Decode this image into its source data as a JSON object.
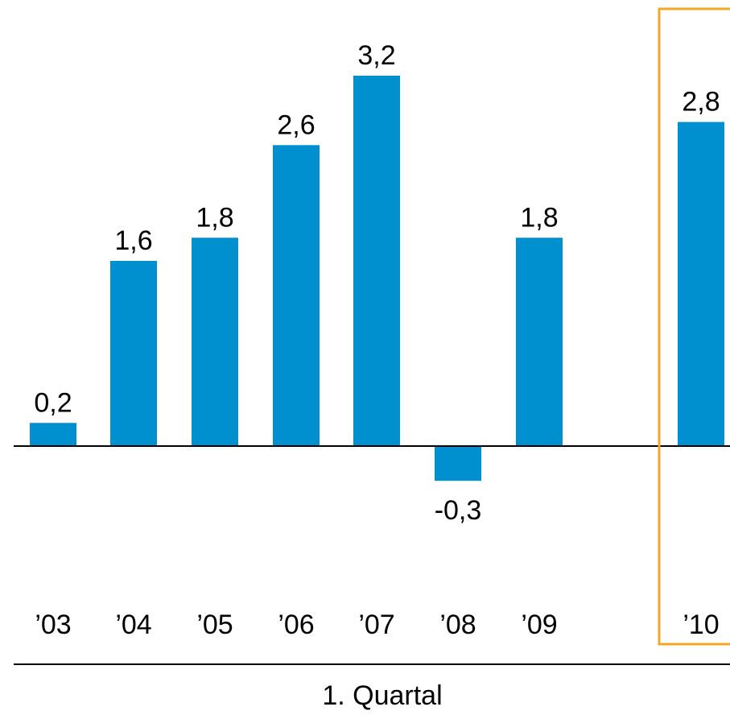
{
  "chart_data": {
    "type": "bar",
    "categories": [
      "’03",
      "’04",
      "’05",
      "’06",
      "’07",
      "’08",
      "’09",
      "’10"
    ],
    "values": [
      0.2,
      1.6,
      1.8,
      2.6,
      3.2,
      -0.3,
      1.8,
      2.8
    ],
    "value_labels": [
      "0,2",
      "1,6",
      "1,8",
      "2,6",
      "3,2",
      "-0,3",
      "1,8",
      "2,8"
    ],
    "xlabel": "1. Quartal",
    "ylim": [
      -0.5,
      3.5
    ],
    "highlighted_category": "’10",
    "grid": false,
    "colors": {
      "bar": "#0090d0",
      "highlight_frame": "#f5a623",
      "axis": "#000000"
    }
  }
}
